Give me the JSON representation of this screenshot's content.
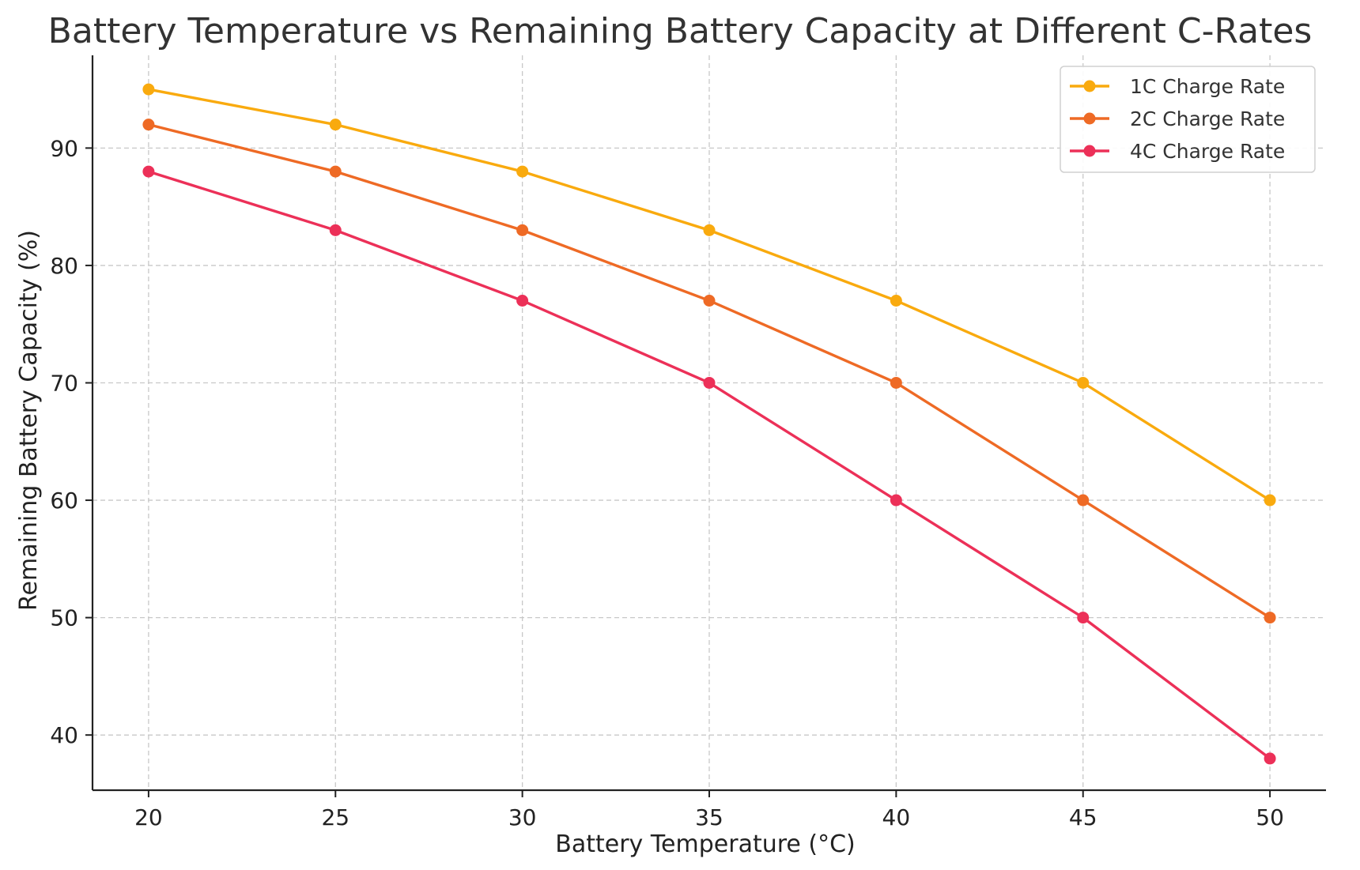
{
  "chart_data": {
    "type": "line",
    "title": "Battery Temperature vs Remaining Battery Capacity at Different C-Rates",
    "xlabel": "Battery Temperature (°C)",
    "ylabel": "Remaining Battery Capacity (%)",
    "x": [
      20,
      25,
      30,
      35,
      40,
      45,
      50
    ],
    "xlim": [
      18.5,
      51.5
    ],
    "ylim": [
      35.3,
      97.9
    ],
    "xticks": [
      "20",
      "25",
      "30",
      "35",
      "40",
      "45",
      "50"
    ],
    "yticks": [
      "40",
      "50",
      "60",
      "70",
      "80",
      "90"
    ],
    "grid": true,
    "legend_position": "top-right",
    "series": [
      {
        "name": "1C Charge Rate",
        "color": "#F9AA0E",
        "values": [
          95,
          92,
          88,
          83,
          77,
          70,
          60
        ]
      },
      {
        "name": "2C Charge Rate",
        "color": "#EE6A25",
        "values": [
          92,
          88,
          83,
          77,
          70,
          60,
          50
        ]
      },
      {
        "name": "4C Charge Rate",
        "color": "#EC3058",
        "values": [
          88,
          83,
          77,
          70,
          60,
          50,
          38
        ]
      }
    ]
  }
}
